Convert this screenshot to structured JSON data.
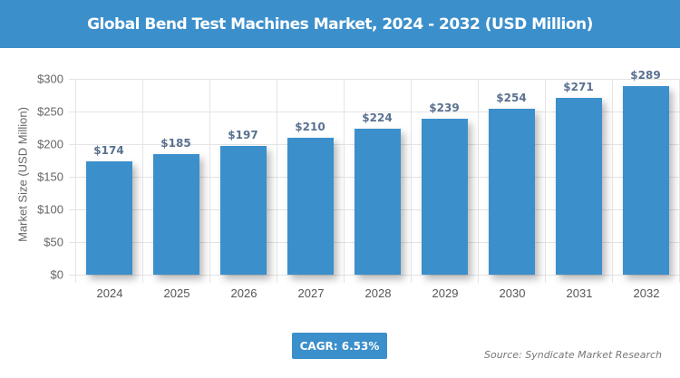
{
  "header": {
    "title": "Global Bend Test Machines Market, 2024 - 2032 (USD Million)"
  },
  "chart_data": {
    "type": "bar",
    "title": "Global Bend Test Machines Market, 2024 - 2032 (USD Million)",
    "xlabel": "",
    "ylabel": "Market Size (USD Million)",
    "categories": [
      "2024",
      "2025",
      "2026",
      "2027",
      "2028",
      "2029",
      "2030",
      "2031",
      "2032"
    ],
    "values": [
      174,
      185,
      197,
      210,
      224,
      239,
      254,
      271,
      289
    ],
    "value_labels": [
      "$174",
      "$185",
      "$197",
      "$210",
      "$224",
      "$239",
      "$254",
      "$271",
      "$289"
    ],
    "ylim": [
      0,
      300
    ],
    "yticks": [
      "$0",
      "$50",
      "$100",
      "$150",
      "$200",
      "$250",
      "$300"
    ],
    "grid": true,
    "bar_color": "#3b8fcb"
  },
  "footer": {
    "cagr_label": "CAGR: 6.53%",
    "source": "Source: Syndicate Market Research"
  },
  "colors": {
    "accent": "#3b8fcb",
    "label": "#5a7190"
  }
}
